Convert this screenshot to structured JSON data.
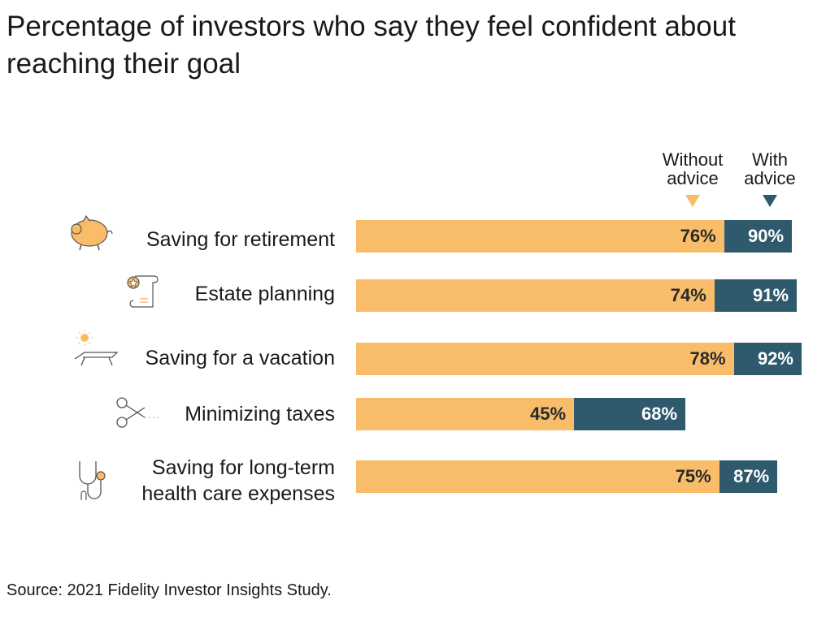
{
  "title": "Percentage of investors who say they feel confident about reaching their goal",
  "legend": {
    "without_label": "Without advice",
    "with_label": "With advice"
  },
  "source": "Source: 2021 Fidelity Investor Insights Study.",
  "colors": {
    "without_advice": "#f9bd6a",
    "with_advice": "#2f5a6d"
  },
  "chart_data": {
    "type": "bar",
    "orientation": "horizontal",
    "stacked_overlay": true,
    "title": "Percentage of investors who say they feel confident about reaching their goal",
    "categories": [
      "Saving for retirement",
      "Estate planning",
      "Saving for a vacation",
      "Minimizing taxes",
      "Saving for long-term health care expenses"
    ],
    "category_icons": [
      "piggy-bank-icon",
      "certificate-icon",
      "vacation-lounger-icon",
      "scissors-icon",
      "stethoscope-icon"
    ],
    "series": [
      {
        "name": "Without advice",
        "values": [
          76,
          74,
          78,
          45,
          75
        ]
      },
      {
        "name": "With advice",
        "values": [
          90,
          91,
          92,
          68,
          87
        ]
      }
    ],
    "value_labels": {
      "Without advice": [
        "76%",
        "74%",
        "78%",
        "45%",
        "75%"
      ],
      "With advice": [
        "90%",
        "91%",
        "92%",
        "68%",
        "87%"
      ]
    },
    "xlim": [
      0,
      92
    ],
    "grid": false,
    "legend_position": "top-right"
  }
}
